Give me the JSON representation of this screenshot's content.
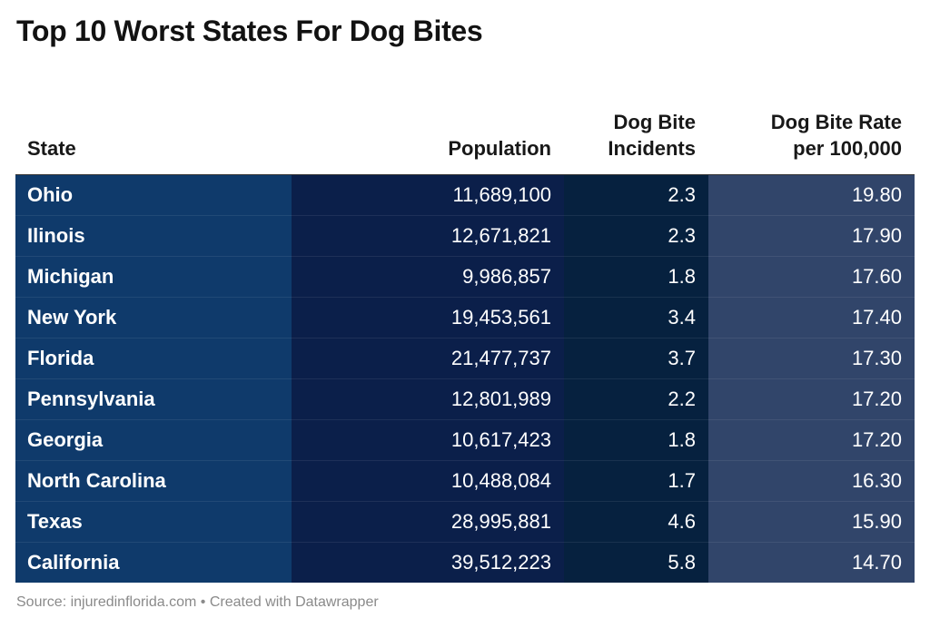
{
  "title": "Top 10 Worst States For Dog Bites",
  "source_text": "Source: injuredinflorida.com • Created with Datawrapper",
  "chart_data": {
    "type": "table",
    "title": "Top 10 Worst States For Dog Bites",
    "columns": [
      {
        "key": "state",
        "label_line1": "State",
        "label_line2": "",
        "align": "left"
      },
      {
        "key": "population",
        "label_line1": "Population",
        "label_line2": "",
        "align": "right"
      },
      {
        "key": "incidents",
        "label_line1": "Dog Bite",
        "label_line2": "Incidents",
        "align": "right"
      },
      {
        "key": "rate",
        "label_line1": "Dog Bite Rate",
        "label_line2": "per 100,000",
        "align": "right"
      }
    ],
    "column_colors": {
      "state": "#0f3a6b",
      "population": "#0b1f4a",
      "incidents": "#06213f",
      "rate": "#31456a"
    },
    "rows": [
      {
        "state": "Ohio",
        "population": "11,689,100",
        "incidents": "2.3",
        "rate": "19.80"
      },
      {
        "state": "Ilinois",
        "population": "12,671,821",
        "incidents": "2.3",
        "rate": "17.90"
      },
      {
        "state": "Michigan",
        "population": "9,986,857",
        "incidents": "1.8",
        "rate": "17.60"
      },
      {
        "state": "New York",
        "population": "19,453,561",
        "incidents": "3.4",
        "rate": "17.40"
      },
      {
        "state": "Florida",
        "population": "21,477,737",
        "incidents": "3.7",
        "rate": "17.30"
      },
      {
        "state": "Pennsylvania",
        "population": "12,801,989",
        "incidents": "2.2",
        "rate": "17.20"
      },
      {
        "state": "Georgia",
        "population": "10,617,423",
        "incidents": "1.8",
        "rate": "17.20"
      },
      {
        "state": "North Carolina",
        "population": "10,488,084",
        "incidents": "1.7",
        "rate": "16.30"
      },
      {
        "state": "Texas",
        "population": "28,995,881",
        "incidents": "4.6",
        "rate": "15.90"
      },
      {
        "state": "California",
        "population": "39,512,223",
        "incidents": "5.8",
        "rate": "14.70"
      }
    ]
  }
}
